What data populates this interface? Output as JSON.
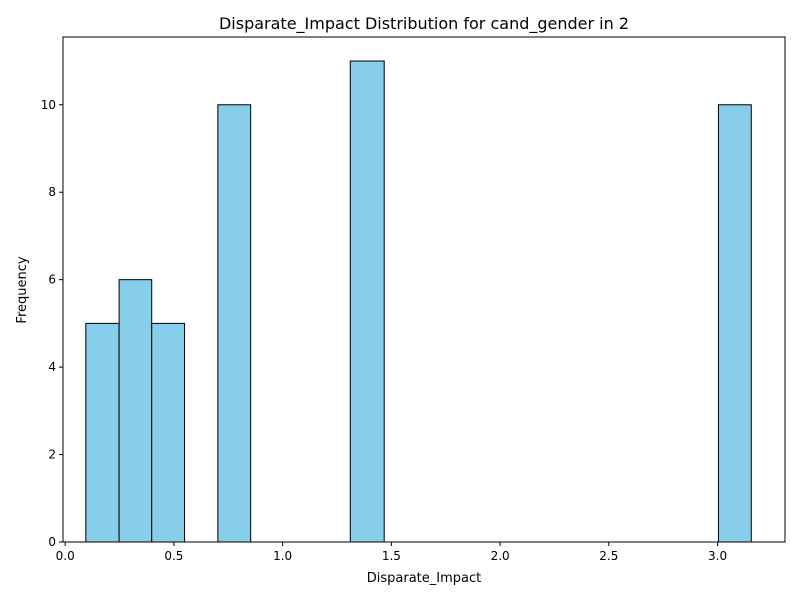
{
  "chart_data": {
    "type": "bar",
    "title": "Disparate_Impact Distribution for cand_gender in 2",
    "xlabel": "Disparate_Impact",
    "ylabel": "Frequency",
    "xlim": [
      -0.01,
      3.31
    ],
    "ylim": [
      0,
      11.55
    ],
    "x_ticks": [
      0.0,
      0.5,
      1.0,
      1.5,
      2.0,
      2.5,
      3.0
    ],
    "x_tick_labels": [
      "0.0",
      "0.5",
      "1.0",
      "1.5",
      "2.0",
      "2.5",
      "3.0"
    ],
    "y_ticks": [
      0,
      2,
      4,
      6,
      8,
      10
    ],
    "y_tick_labels": [
      "0",
      "2",
      "4",
      "6",
      "8",
      "10"
    ],
    "bins": [
      {
        "x0": 0.095,
        "x1": 0.248,
        "count": 5
      },
      {
        "x0": 0.248,
        "x1": 0.398,
        "count": 6
      },
      {
        "x0": 0.398,
        "x1": 0.549,
        "count": 5
      },
      {
        "x0": 0.702,
        "x1": 0.853,
        "count": 10
      },
      {
        "x0": 1.311,
        "x1": 1.467,
        "count": 11
      },
      {
        "x0": 3.004,
        "x1": 3.155,
        "count": 10
      }
    ],
    "bar_color": "#87ceeb",
    "edge_color": "#000000",
    "grid": false
  }
}
